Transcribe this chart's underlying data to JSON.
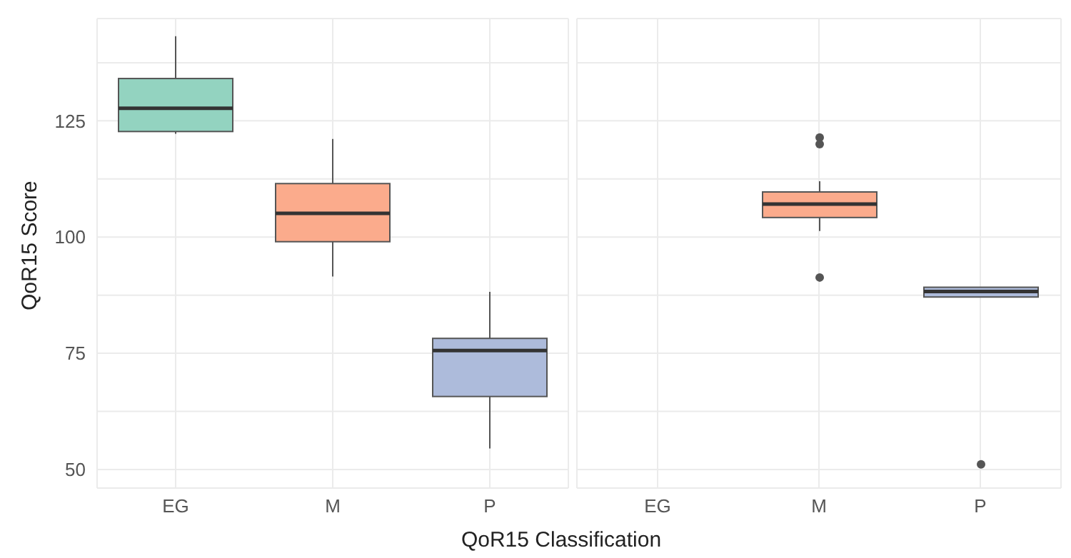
{
  "chart_data": [
    {
      "type": "box",
      "ylabel": "QoR15 Score",
      "xlabel": "QoR15 Classification",
      "categories": [
        "EG",
        "M",
        "P"
      ],
      "colors": [
        "#93d3c0",
        "#fbab8c",
        "#adbbdb"
      ],
      "boxes": [
        {
          "low": 122.2,
          "q1": 122.7,
          "median": 127.7,
          "q3": 134.1,
          "high": 143.2
        },
        {
          "low": 91.5,
          "q1": 99.0,
          "median": 105.1,
          "q3": 111.5,
          "high": 121.1
        },
        {
          "low": 54.5,
          "q1": 65.7,
          "median": 75.6,
          "q3": 78.2,
          "high": 88.2
        }
      ],
      "ylim": [
        46,
        147
      ],
      "yticks": [
        50,
        {
          "value": 62.5,
          "label": null
        },
        75,
        {
          "value": 87.5,
          "label": null
        },
        100,
        {
          "value": 112.5,
          "label": null
        },
        125,
        {
          "value": 137.5,
          "label": null
        }
      ],
      "grid": true
    },
    {
      "type": "box",
      "categories": [
        "EG",
        "M",
        "P"
      ],
      "colors": [
        "#93d3c0",
        "#fbab8c",
        "#adbbdb"
      ],
      "boxes": [
        null,
        {
          "low": 101.3,
          "q1": 104.2,
          "median": 107.1,
          "q3": 109.7,
          "high": 112.0,
          "outliers": [
            121.4,
            120.0,
            91.3
          ]
        },
        {
          "low": 87.1,
          "q1": 87.1,
          "median": 88.3,
          "q3": 89.2,
          "high": 89.2,
          "outliers": [
            51.1
          ]
        }
      ],
      "ylim": [
        46,
        147
      ],
      "yticks": [
        50,
        {
          "value": 62.5,
          "label": null
        },
        75,
        {
          "value": 87.5,
          "label": null
        },
        100,
        {
          "value": 112.5,
          "label": null
        },
        125,
        {
          "value": 137.5,
          "label": null
        }
      ],
      "grid": true,
      "tick_labels": "x"
    }
  ]
}
